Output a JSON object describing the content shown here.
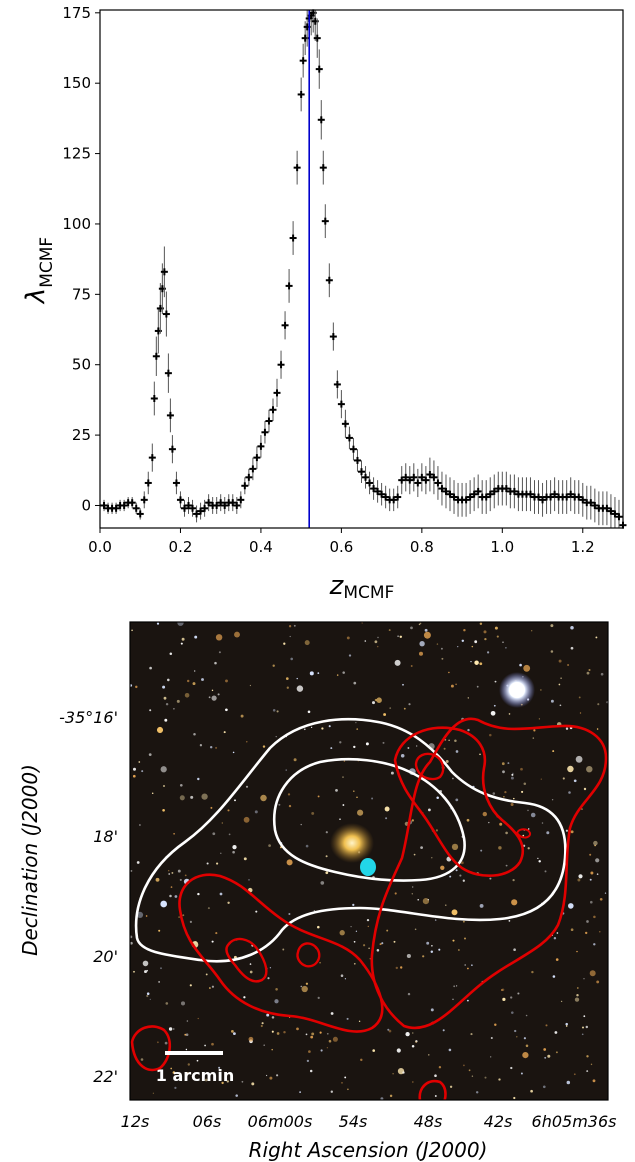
{
  "chart_data": [
    {
      "type": "scatter",
      "title": "",
      "xlabel": {
        "main": "z",
        "sub": "MCMF"
      },
      "ylabel": {
        "main": "λ",
        "sub": "MCMF"
      },
      "xlim": [
        0.0,
        1.3
      ],
      "ylim": [
        -8,
        176
      ],
      "xticks": [
        0.0,
        0.2,
        0.4,
        0.6,
        0.8,
        1.0,
        1.2
      ],
      "xtick_labels": [
        "0.0",
        "0.2",
        "0.4",
        "0.6",
        "0.8",
        "1.0",
        "1.2"
      ],
      "yticks": [
        0,
        25,
        50,
        75,
        100,
        125,
        150,
        175
      ],
      "ytick_labels": [
        "0",
        "25",
        "50",
        "75",
        "100",
        "125",
        "150",
        "175"
      ],
      "vline": {
        "x": 0.52,
        "color": "#0000cc"
      },
      "marker_color": "#000000",
      "grid": false,
      "series": [
        {
          "x": [
            0.01,
            0.02,
            0.03,
            0.04,
            0.05,
            0.06,
            0.07,
            0.08,
            0.09,
            0.1,
            0.11,
            0.12,
            0.13,
            0.135,
            0.14,
            0.145,
            0.15,
            0.155,
            0.16,
            0.165,
            0.17,
            0.175,
            0.18,
            0.19,
            0.2,
            0.21,
            0.22,
            0.23,
            0.24,
            0.25,
            0.26,
            0.27,
            0.28,
            0.29,
            0.3,
            0.31,
            0.32,
            0.33,
            0.34,
            0.35,
            0.36,
            0.37,
            0.38,
            0.39,
            0.4,
            0.41,
            0.42,
            0.43,
            0.44,
            0.45,
            0.46,
            0.47,
            0.48,
            0.49,
            0.5,
            0.505,
            0.51,
            0.515,
            0.52,
            0.525,
            0.53,
            0.535,
            0.54,
            0.545,
            0.55,
            0.555,
            0.56,
            0.57,
            0.58,
            0.59,
            0.6,
            0.61,
            0.62,
            0.63,
            0.64,
            0.65,
            0.66,
            0.67,
            0.68,
            0.69,
            0.7,
            0.71,
            0.72,
            0.73,
            0.74,
            0.75,
            0.76,
            0.77,
            0.78,
            0.79,
            0.8,
            0.81,
            0.82,
            0.83,
            0.84,
            0.85,
            0.86,
            0.87,
            0.88,
            0.89,
            0.9,
            0.91,
            0.92,
            0.93,
            0.94,
            0.95,
            0.96,
            0.97,
            0.98,
            0.99,
            1.0,
            1.01,
            1.02,
            1.03,
            1.04,
            1.05,
            1.06,
            1.07,
            1.08,
            1.09,
            1.1,
            1.11,
            1.12,
            1.13,
            1.14,
            1.15,
            1.16,
            1.17,
            1.18,
            1.19,
            1.2,
            1.21,
            1.22,
            1.23,
            1.24,
            1.25,
            1.26,
            1.27,
            1.28,
            1.29,
            1.3
          ],
          "y": [
            0,
            -1,
            -1,
            -1,
            0,
            0,
            1,
            1,
            -1,
            -3,
            2,
            8,
            17,
            38,
            53,
            62,
            70,
            77,
            83,
            68,
            47,
            32,
            20,
            8,
            2,
            -1,
            0,
            -1,
            -3,
            -2,
            -1,
            1,
            0,
            0,
            1,
            0,
            1,
            1,
            0,
            2,
            7,
            10,
            13,
            17,
            21,
            26,
            30,
            34,
            40,
            50,
            64,
            78,
            95,
            120,
            146,
            158,
            166,
            170,
            173,
            174,
            175,
            172,
            166,
            155,
            137,
            120,
            101,
            80,
            60,
            43,
            36,
            29,
            24,
            20,
            16,
            12,
            10,
            8,
            6,
            5,
            4,
            3,
            2,
            2,
            3,
            9,
            10,
            9,
            10,
            8,
            10,
            9,
            11,
            10,
            8,
            6,
            5,
            4,
            3,
            2,
            2,
            2,
            3,
            4,
            5,
            3,
            3,
            4,
            5,
            6,
            6,
            6,
            5,
            5,
            4,
            4,
            4,
            4,
            3,
            3,
            2,
            3,
            3,
            4,
            3,
            3,
            3,
            4,
            3,
            3,
            2,
            1,
            1,
            0,
            -1,
            -1,
            -1,
            -2,
            -3,
            -4,
            -7
          ],
          "yerr": [
            2,
            2,
            2,
            2,
            2,
            2,
            2,
            2,
            2,
            2,
            3,
            4,
            5,
            6,
            7,
            8,
            9,
            9,
            9,
            8,
            7,
            6,
            5,
            4,
            3,
            3,
            3,
            3,
            3,
            3,
            3,
            3,
            3,
            3,
            3,
            3,
            3,
            3,
            3,
            3,
            3,
            3,
            4,
            4,
            4,
            4,
            4,
            4,
            5,
            5,
            5,
            6,
            6,
            6,
            6,
            6,
            6,
            7,
            7,
            7,
            7,
            7,
            7,
            7,
            7,
            6,
            6,
            6,
            5,
            5,
            5,
            5,
            4,
            4,
            4,
            4,
            4,
            4,
            4,
            4,
            4,
            4,
            4,
            4,
            4,
            5,
            5,
            5,
            5,
            5,
            5,
            5,
            6,
            6,
            6,
            6,
            6,
            6,
            6,
            6,
            6,
            6,
            6,
            6,
            6,
            6,
            6,
            6,
            6,
            6,
            6,
            6,
            6,
            6,
            6,
            6,
            6,
            6,
            6,
            6,
            6,
            6,
            6,
            6,
            6,
            6,
            6,
            6,
            6,
            6,
            6,
            6,
            6,
            6,
            6,
            6,
            6,
            6,
            6,
            6,
            6
          ]
        }
      ]
    },
    {
      "type": "image",
      "title": "",
      "xlabel": "Right Ascension (J2000)",
      "ylabel": "Declination (J2000)",
      "xtick_labels": [
        "12s",
        "06s",
        "06m00s",
        "54s",
        "48s",
        "42s",
        "6h05m36s"
      ],
      "ytick_labels": [
        "-35°16'",
        "18'",
        "20'",
        "22'"
      ],
      "scalebar_label": "1 arcmin",
      "contour_colors": {
        "first": "#ffffff",
        "second": "#e00000"
      },
      "marker_color": "#22d6e8",
      "background": "#1a1410"
    }
  ]
}
